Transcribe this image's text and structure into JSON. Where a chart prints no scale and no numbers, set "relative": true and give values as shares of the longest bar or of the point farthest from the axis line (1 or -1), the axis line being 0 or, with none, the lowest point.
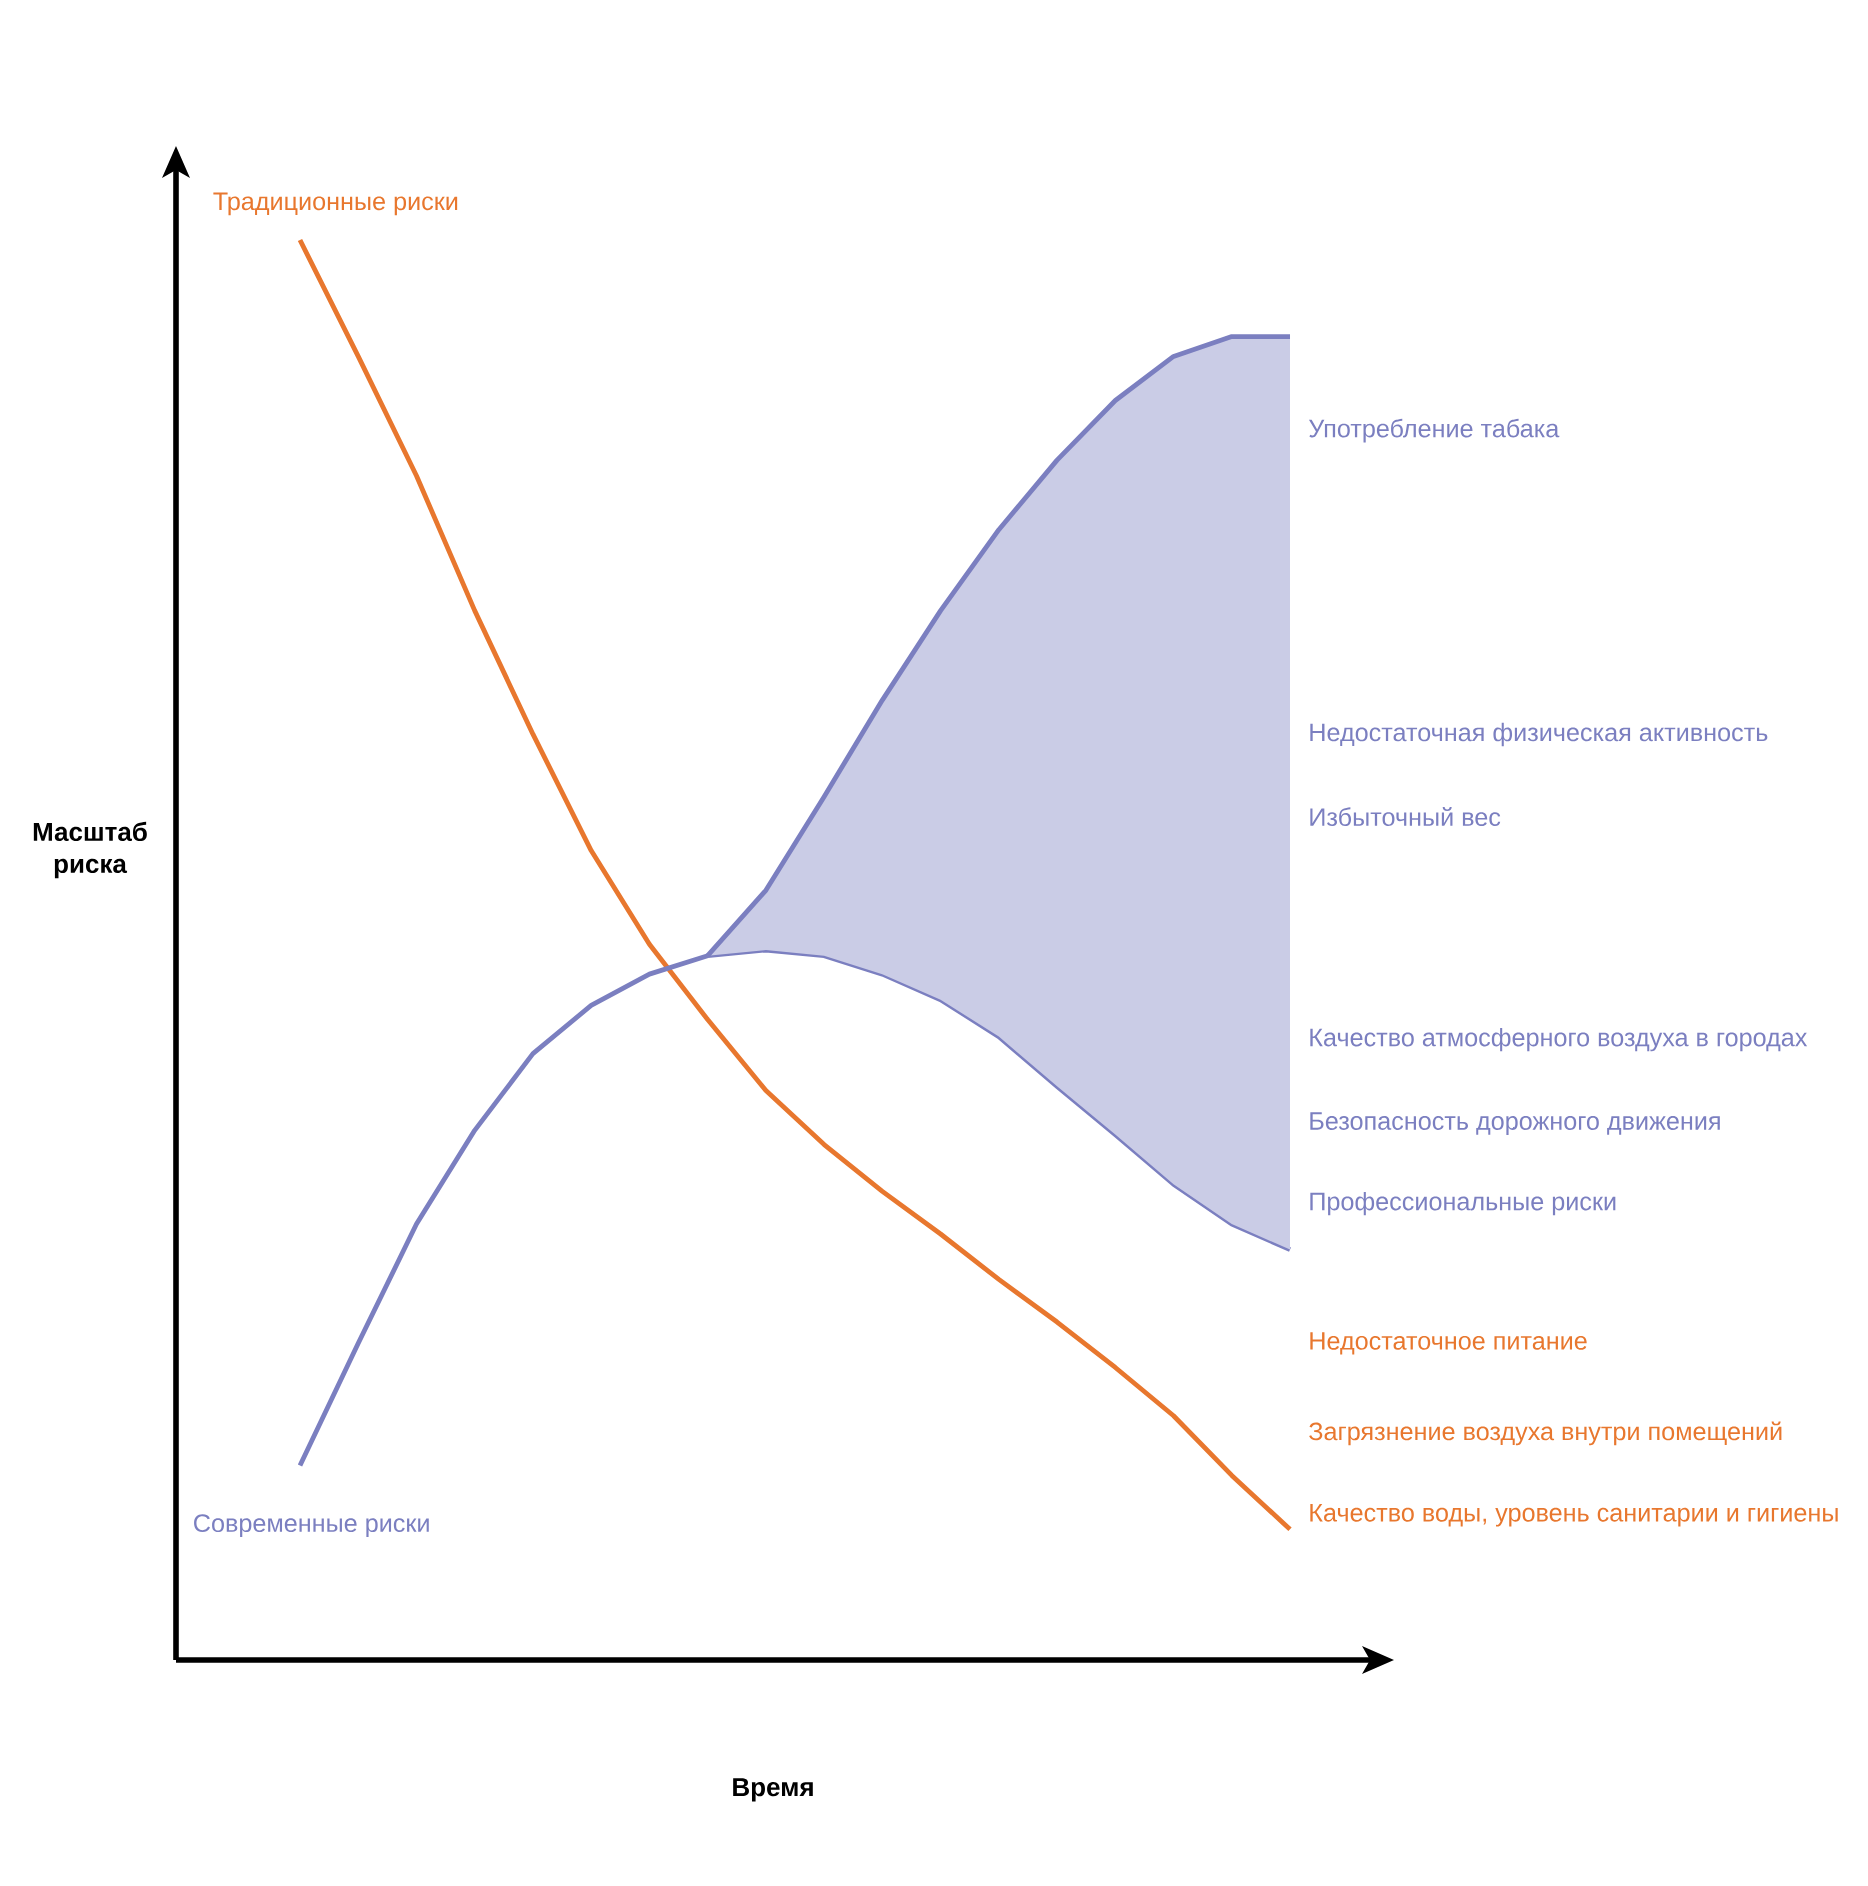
{
  "chart_data": {
    "type": "line",
    "relative": true,
    "xlabel": "Время",
    "ylabel": "Масштаб риска",
    "categories": [
      null,
      null,
      null,
      null,
      null,
      null,
      null,
      null,
      null,
      null,
      null,
      null,
      null,
      null,
      null,
      null,
      null,
      null
    ],
    "series": [
      {
        "name": "Традиционные риски",
        "color": "#e8772e",
        "values": [
          1.0,
          0.918,
          0.834,
          0.739,
          0.652,
          0.57,
          0.504,
          0.451,
          0.401,
          0.363,
          0.33,
          0.3,
          0.268,
          0.238,
          0.206,
          0.172,
          0.13,
          0.092
        ]
      },
      {
        "name": "Современные риски",
        "color": "#7b7fc0",
        "values": [
          0.137,
          0.223,
          0.307,
          0.373,
          0.427,
          0.461,
          0.483,
          0.496,
          0.5,
          0.496,
          0.483,
          0.465,
          0.439,
          0.404,
          0.37,
          0.335,
          0.307,
          0.289
        ]
      },
      {
        "color": "#7b7fc0",
        "values": [
          null,
          null,
          null,
          null,
          null,
          null,
          null,
          0.496,
          0.542,
          0.608,
          0.676,
          0.739,
          0.796,
          0.845,
          0.887,
          0.918,
          0.932,
          0.932
        ],
        "lower": [
          null,
          null,
          null,
          null,
          null,
          null,
          null,
          0.496,
          0.5,
          0.496,
          0.483,
          0.465,
          0.439,
          0.404,
          0.37,
          0.335,
          0.307,
          0.289
        ],
        "upper": [
          null,
          null,
          null,
          null,
          null,
          null,
          null,
          0.496,
          0.542,
          0.608,
          0.676,
          0.739,
          0.796,
          0.845,
          0.887,
          0.918,
          0.932,
          0.932
        ]
      }
    ],
    "annotations": [
      "Употребление табака",
      "Недостаточная физическая активность",
      "Избыточный вес",
      "Качество атмосферного воздуха в городах",
      "Безопасность дорожного движения",
      "Профессиональные риски",
      "Недостаточное питание",
      "Загрязнение воздуха внутри помещений",
      "Качество воды, уровень санитарии и гигиены"
    ]
  }
}
